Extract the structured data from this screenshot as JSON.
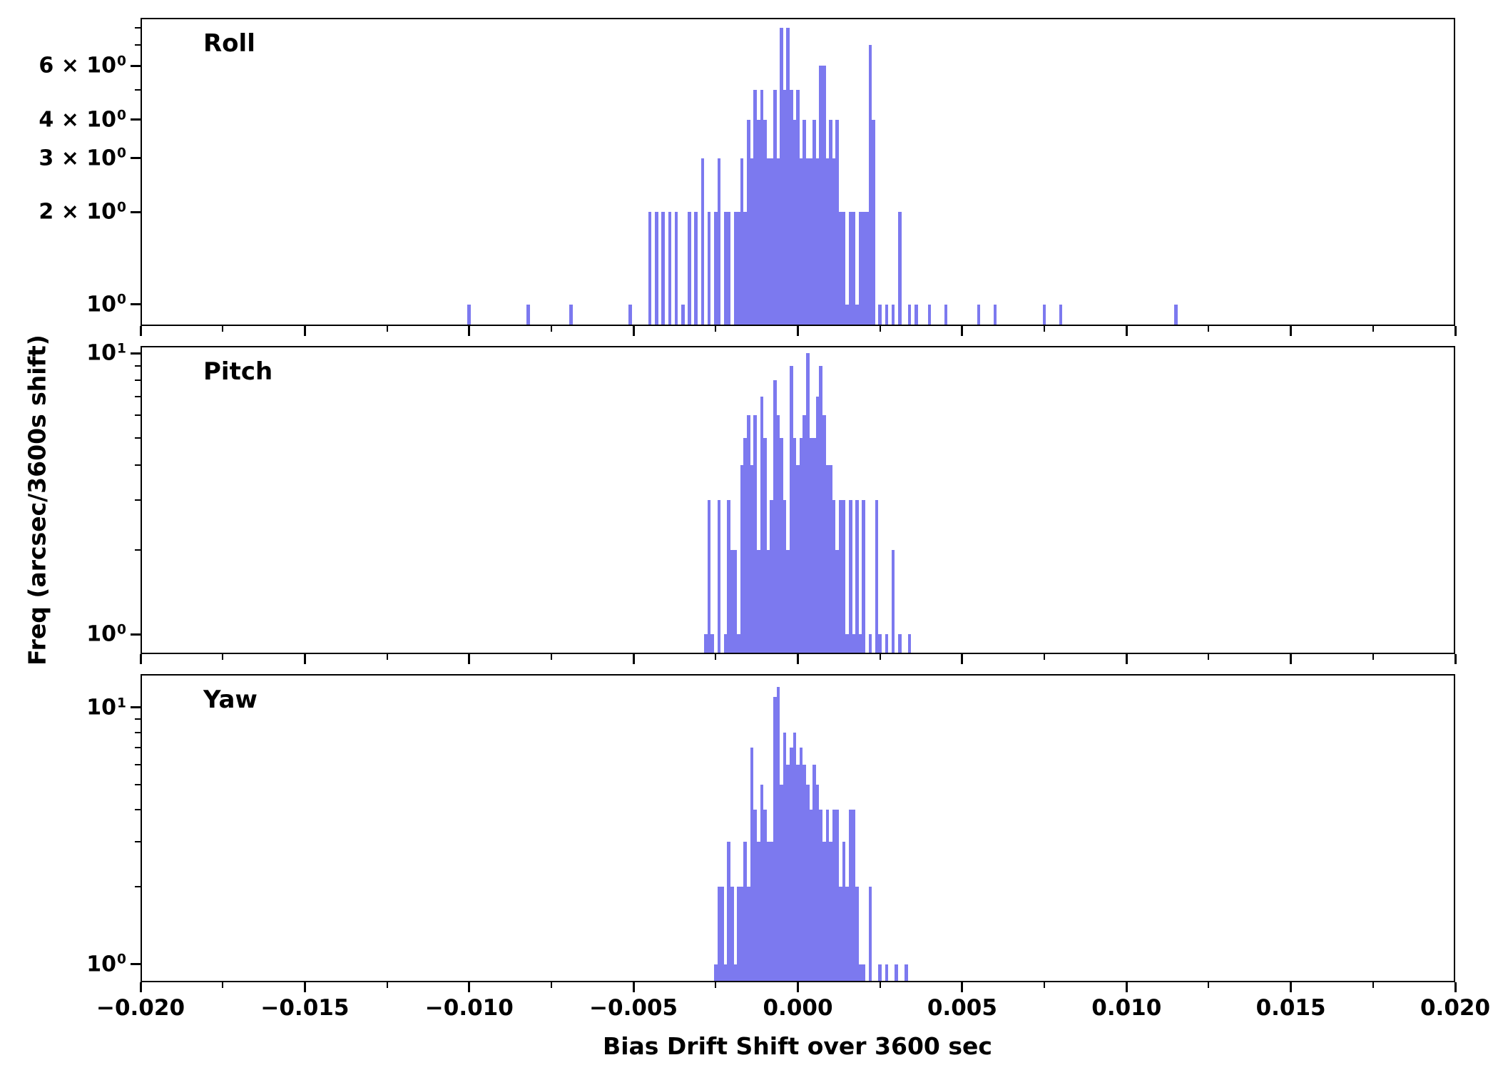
{
  "chart_data": {
    "type": "bar",
    "subtype": "histogram-log-y",
    "title": "",
    "xlabel": "Bias Drift Shift over 3600 sec",
    "ylabel": "Freq (arcsec/3600s shift)",
    "bar_color": "#7c79ef",
    "axis_color": "#000000",
    "xlim": [
      -0.02,
      0.02
    ],
    "bin_width": 0.0001,
    "grid": false,
    "legend": "none",
    "xticks": [
      {
        "value": -0.02,
        "label": "−0.020"
      },
      {
        "value": -0.015,
        "label": "−0.015"
      },
      {
        "value": -0.01,
        "label": "−0.010"
      },
      {
        "value": -0.005,
        "label": "−0.005"
      },
      {
        "value": 0.0,
        "label": "0.000"
      },
      {
        "value": 0.005,
        "label": "0.005"
      },
      {
        "value": 0.01,
        "label": "0.010"
      },
      {
        "value": 0.015,
        "label": "0.015"
      },
      {
        "value": 0.02,
        "label": "0.020"
      }
    ],
    "xminor": [
      -0.0175,
      -0.0125,
      -0.0075,
      -0.0025,
      0.0025,
      0.0075,
      0.0125,
      0.0175
    ],
    "panels": [
      {
        "name": "Roll",
        "ylim": [
          0.85,
          8.6
        ],
        "yticks": [
          {
            "v": 6,
            "base": "6 × 10",
            "exp": "0"
          },
          {
            "v": 4,
            "base": "4 × 10",
            "exp": "0"
          },
          {
            "v": 3,
            "base": "3 × 10",
            "exp": "0"
          },
          {
            "v": 2,
            "base": "2 × 10",
            "exp": "0"
          },
          {
            "v": 1,
            "base": "10",
            "exp": "0"
          }
        ],
        "yminor": [
          5,
          7,
          8
        ],
        "bars": [
          [
            -0.01,
            1
          ],
          [
            -0.0082,
            1
          ],
          [
            -0.0069,
            1
          ],
          [
            -0.0051,
            1
          ],
          [
            -0.0045,
            2
          ],
          [
            -0.0043,
            2
          ],
          [
            -0.0041,
            2
          ],
          [
            -0.0039,
            2
          ],
          [
            -0.0037,
            2
          ],
          [
            -0.0035,
            1
          ],
          [
            -0.0033,
            2
          ],
          [
            -0.0031,
            2
          ],
          [
            -0.0029,
            3
          ],
          [
            -0.0027,
            2
          ],
          [
            -0.0025,
            2
          ],
          [
            -0.0024,
            3
          ],
          [
            -0.0022,
            2
          ],
          [
            -0.0021,
            2
          ],
          [
            -0.0019,
            2
          ],
          [
            -0.0018,
            2
          ],
          [
            -0.0017,
            3
          ],
          [
            -0.0016,
            2
          ],
          [
            -0.0015,
            4
          ],
          [
            -0.0014,
            3
          ],
          [
            -0.0013,
            5
          ],
          [
            -0.0012,
            4
          ],
          [
            -0.0011,
            5
          ],
          [
            -0.001,
            4
          ],
          [
            -0.0009,
            3
          ],
          [
            -0.0008,
            3
          ],
          [
            -0.0007,
            5
          ],
          [
            -0.0006,
            3
          ],
          [
            -0.0005,
            8
          ],
          [
            -0.0004,
            5
          ],
          [
            -0.0003,
            8
          ],
          [
            -0.0002,
            5
          ],
          [
            -0.0001,
            4
          ],
          [
            0.0,
            5
          ],
          [
            0.0001,
            3
          ],
          [
            0.0002,
            4
          ],
          [
            0.0003,
            3
          ],
          [
            0.0004,
            3
          ],
          [
            0.0005,
            4
          ],
          [
            0.0006,
            3
          ],
          [
            0.0007,
            6
          ],
          [
            0.0008,
            6
          ],
          [
            0.0009,
            3
          ],
          [
            0.001,
            4
          ],
          [
            0.0011,
            3
          ],
          [
            0.0012,
            4
          ],
          [
            0.0013,
            2
          ],
          [
            0.0014,
            2
          ],
          [
            0.0015,
            1
          ],
          [
            0.0016,
            2
          ],
          [
            0.0017,
            2
          ],
          [
            0.0018,
            1
          ],
          [
            0.0019,
            2
          ],
          [
            0.002,
            2
          ],
          [
            0.0021,
            2
          ],
          [
            0.0022,
            7
          ],
          [
            0.0023,
            4
          ],
          [
            0.0025,
            1
          ],
          [
            0.0027,
            1
          ],
          [
            0.0029,
            1
          ],
          [
            0.0031,
            2
          ],
          [
            0.0034,
            1
          ],
          [
            0.0036,
            1
          ],
          [
            0.004,
            1
          ],
          [
            0.0045,
            1
          ],
          [
            0.0055,
            1
          ],
          [
            0.006,
            1
          ],
          [
            0.0075,
            1
          ],
          [
            0.008,
            1
          ],
          [
            0.0115,
            1
          ]
        ]
      },
      {
        "name": "Pitch",
        "ylim": [
          0.85,
          10.6
        ],
        "yticks": [
          {
            "v": 10,
            "base": "10",
            "exp": "1"
          },
          {
            "v": 1,
            "base": "10",
            "exp": "0"
          }
        ],
        "yminor": [
          2,
          3,
          4,
          5,
          6,
          7,
          8,
          9
        ],
        "bars": [
          [
            -0.0028,
            1
          ],
          [
            -0.0027,
            3
          ],
          [
            -0.0026,
            1
          ],
          [
            -0.0024,
            3
          ],
          [
            -0.0022,
            1
          ],
          [
            -0.0021,
            3
          ],
          [
            -0.002,
            2
          ],
          [
            -0.0019,
            2
          ],
          [
            -0.0018,
            1
          ],
          [
            -0.0017,
            4
          ],
          [
            -0.0016,
            5
          ],
          [
            -0.0015,
            6
          ],
          [
            -0.0014,
            4
          ],
          [
            -0.0013,
            6
          ],
          [
            -0.0012,
            2
          ],
          [
            -0.0011,
            7
          ],
          [
            -0.001,
            5
          ],
          [
            -0.0009,
            2
          ],
          [
            -0.0008,
            3
          ],
          [
            -0.0007,
            8
          ],
          [
            -0.0006,
            6
          ],
          [
            -0.0005,
            5
          ],
          [
            -0.0004,
            3
          ],
          [
            -0.0003,
            2
          ],
          [
            -0.0002,
            9
          ],
          [
            -0.0001,
            5
          ],
          [
            0.0,
            4
          ],
          [
            0.0001,
            5
          ],
          [
            0.0002,
            6
          ],
          [
            0.0003,
            10
          ],
          [
            0.0004,
            5
          ],
          [
            0.0005,
            5
          ],
          [
            0.0006,
            7
          ],
          [
            0.0007,
            9
          ],
          [
            0.0008,
            6
          ],
          [
            0.0009,
            4
          ],
          [
            0.001,
            4
          ],
          [
            0.0011,
            3
          ],
          [
            0.0012,
            2
          ],
          [
            0.0013,
            3
          ],
          [
            0.0014,
            3
          ],
          [
            0.0015,
            1
          ],
          [
            0.0016,
            3
          ],
          [
            0.0017,
            1
          ],
          [
            0.0018,
            3
          ],
          [
            0.0019,
            1
          ],
          [
            0.002,
            3
          ],
          [
            0.0022,
            1
          ],
          [
            0.0024,
            3
          ],
          [
            0.0025,
            1
          ],
          [
            0.0027,
            1
          ],
          [
            0.0029,
            2
          ],
          [
            0.0031,
            1
          ],
          [
            0.0034,
            1
          ]
        ]
      },
      {
        "name": "Yaw",
        "ylim": [
          0.85,
          13.5
        ],
        "yticks": [
          {
            "v": 10,
            "base": "10",
            "exp": "1"
          },
          {
            "v": 1,
            "base": "10",
            "exp": "0"
          }
        ],
        "yminor": [
          2,
          3,
          4,
          5,
          6,
          7,
          8,
          9
        ],
        "bars": [
          [
            -0.0025,
            1
          ],
          [
            -0.0024,
            2
          ],
          [
            -0.0023,
            2
          ],
          [
            -0.0022,
            1
          ],
          [
            -0.0021,
            3
          ],
          [
            -0.002,
            2
          ],
          [
            -0.0019,
            1
          ],
          [
            -0.0018,
            2
          ],
          [
            -0.0017,
            2
          ],
          [
            -0.0016,
            3
          ],
          [
            -0.0015,
            2
          ],
          [
            -0.0014,
            7
          ],
          [
            -0.0013,
            4
          ],
          [
            -0.0012,
            3
          ],
          [
            -0.0011,
            5
          ],
          [
            -0.001,
            4
          ],
          [
            -0.0009,
            3
          ],
          [
            -0.0008,
            3
          ],
          [
            -0.0007,
            11
          ],
          [
            -0.0006,
            12
          ],
          [
            -0.0005,
            5
          ],
          [
            -0.0004,
            8
          ],
          [
            -0.0003,
            6
          ],
          [
            -0.0002,
            7
          ],
          [
            -0.0001,
            8
          ],
          [
            0.0,
            6
          ],
          [
            0.0001,
            7
          ],
          [
            0.0002,
            6
          ],
          [
            0.0003,
            5
          ],
          [
            0.0004,
            4
          ],
          [
            0.0005,
            6
          ],
          [
            0.0006,
            5
          ],
          [
            0.0007,
            4
          ],
          [
            0.0008,
            3
          ],
          [
            0.0009,
            4
          ],
          [
            0.001,
            3
          ],
          [
            0.0011,
            4
          ],
          [
            0.0012,
            4
          ],
          [
            0.0013,
            2
          ],
          [
            0.0014,
            3
          ],
          [
            0.0015,
            2
          ],
          [
            0.0016,
            4
          ],
          [
            0.0017,
            4
          ],
          [
            0.0018,
            2
          ],
          [
            0.0019,
            1
          ],
          [
            0.002,
            1
          ],
          [
            0.0022,
            2
          ],
          [
            0.0025,
            1
          ],
          [
            0.0027,
            1
          ],
          [
            0.003,
            1
          ],
          [
            0.0033,
            1
          ]
        ]
      }
    ]
  }
}
